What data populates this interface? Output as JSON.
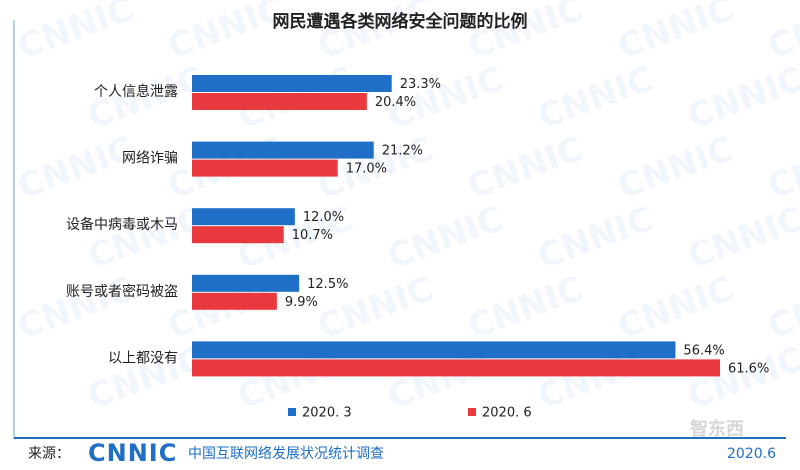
{
  "chart_data": {
    "type": "hbar",
    "title": "网民遭遇各类网络安全问题的比例",
    "categories": [
      "个人信息泄露",
      "网络诈骗",
      "设备中病毒或木马",
      "账号或者密码被盗",
      "以上都没有"
    ],
    "series": [
      {
        "name": "2020. 3",
        "color": "#1f6fc6",
        "values": [
          23.3,
          21.2,
          12.0,
          12.5,
          56.4
        ],
        "value_labels": [
          "23.3%",
          "21.2%",
          "12.0%",
          "12.5%",
          "56.4%"
        ]
      },
      {
        "name": "2020. 6",
        "color": "#e8393e",
        "values": [
          20.4,
          17.0,
          10.7,
          9.9,
          61.6
        ],
        "value_labels": [
          "20.4%",
          "17.0%",
          "10.7%",
          "9.9%",
          "61.6%"
        ]
      }
    ],
    "source_prefix": "来源：",
    "source_logo": "CNNIC",
    "source_text": "中国互联网络发展状况统计调查",
    "date": "2020.6",
    "watermark": "智东西"
  }
}
